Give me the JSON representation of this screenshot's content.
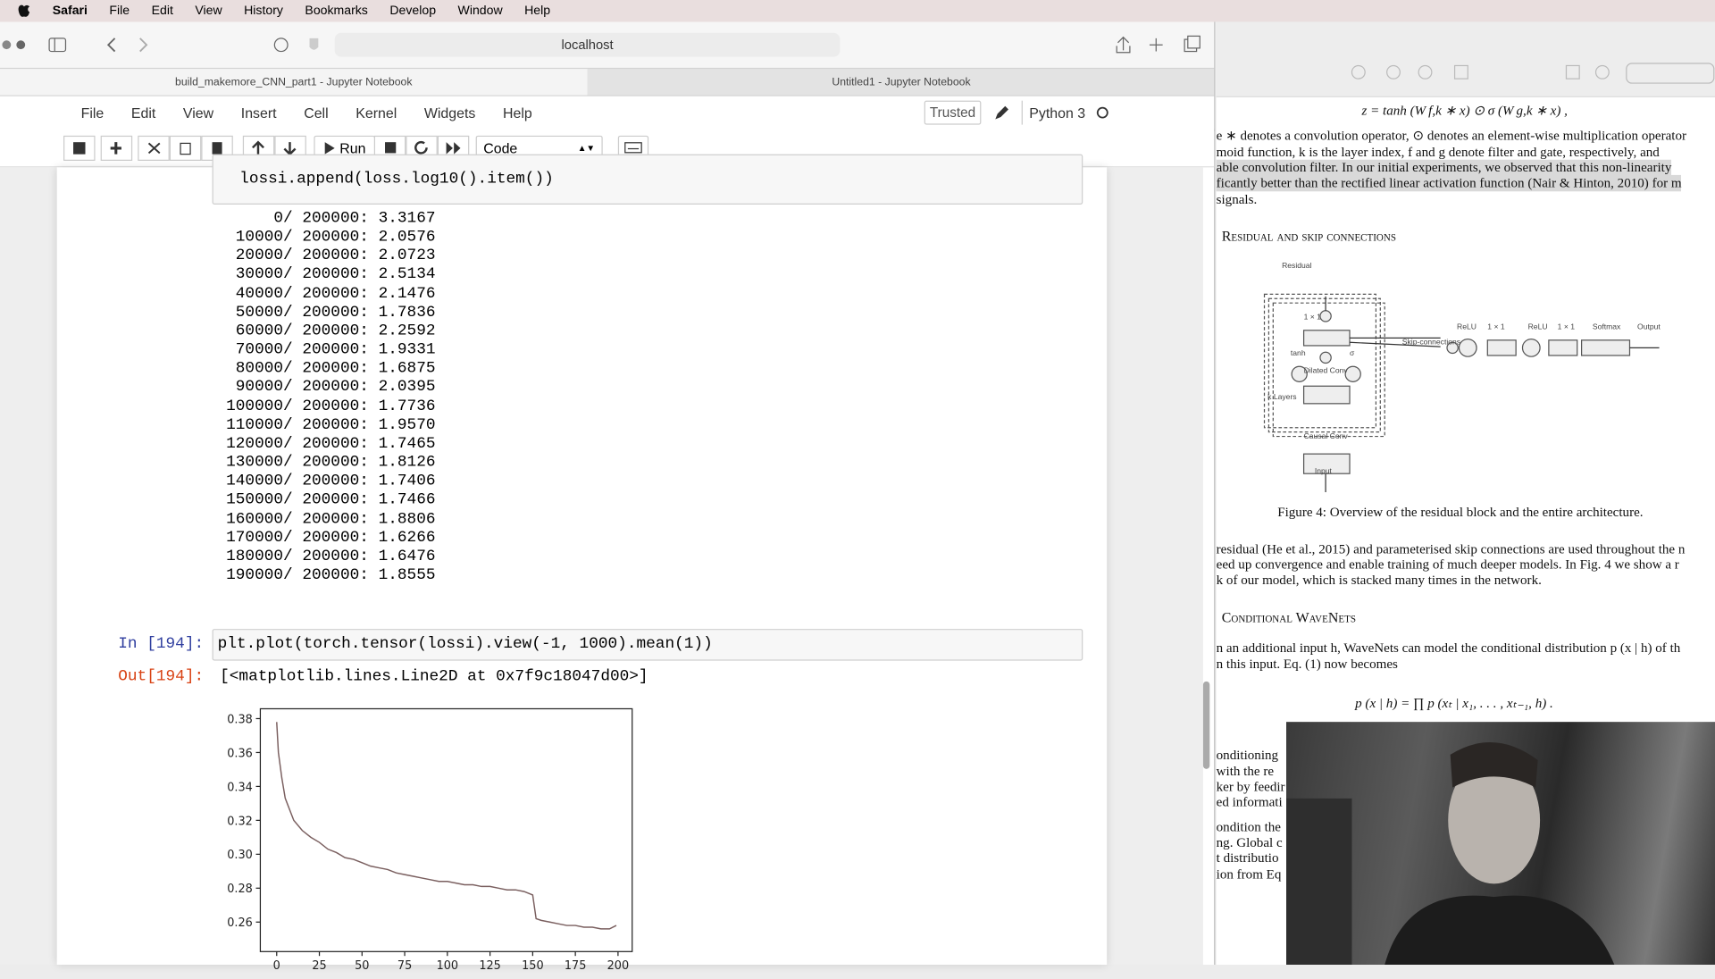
{
  "menubar": {
    "app": "Safari",
    "items": [
      "File",
      "Edit",
      "View",
      "History",
      "Bookmarks",
      "Develop",
      "Window",
      "Help"
    ]
  },
  "browser": {
    "url": "localhost",
    "tabs": [
      "build_makemore_CNN_part1 - Jupyter Notebook",
      "Untitled1 - Jupyter Notebook"
    ]
  },
  "jupyter": {
    "menu": [
      "File",
      "Edit",
      "View",
      "Insert",
      "Cell",
      "Kernel",
      "Widgets",
      "Help"
    ],
    "trusted": "Trusted",
    "kernel": "Python 3",
    "run": "Run",
    "cell_type": "Code"
  },
  "cells": {
    "prev_code": "lossi.append(loss.log10().item())",
    "prev_output": [
      "      0/ 200000: 3.3167",
      "  10000/ 200000: 2.0576",
      "  20000/ 200000: 2.0723",
      "  30000/ 200000: 2.5134",
      "  40000/ 200000: 2.1476",
      "  50000/ 200000: 1.7836",
      "  60000/ 200000: 2.2592",
      "  70000/ 200000: 1.9331",
      "  80000/ 200000: 1.6875",
      "  90000/ 200000: 2.0395",
      " 100000/ 200000: 1.7736",
      " 110000/ 200000: 1.9570",
      " 120000/ 200000: 1.7465",
      " 130000/ 200000: 1.8126",
      " 140000/ 200000: 1.7406",
      " 150000/ 200000: 1.7466",
      " 160000/ 200000: 1.8806",
      " 170000/ 200000: 1.6266",
      " 180000/ 200000: 1.6476",
      " 190000/ 200000: 1.8555"
    ],
    "in_prompt": "In [194]:",
    "code": "plt.plot(torch.tensor(lossi).view(-1, 1000).mean(1))",
    "out_prompt": "Out[194]:",
    "out_text": "[<matplotlib.lines.Line2D at 0x7f9c18047d00>]"
  },
  "chart_data": {
    "type": "line",
    "x": [
      0,
      1,
      3,
      5,
      10,
      15,
      20,
      25,
      30,
      35,
      40,
      45,
      50,
      55,
      60,
      65,
      70,
      75,
      80,
      85,
      90,
      95,
      100,
      105,
      110,
      115,
      120,
      125,
      130,
      135,
      140,
      145,
      150,
      152,
      155,
      160,
      165,
      170,
      175,
      180,
      185,
      190,
      195,
      199
    ],
    "values": [
      0.378,
      0.36,
      0.345,
      0.333,
      0.32,
      0.314,
      0.31,
      0.307,
      0.303,
      0.301,
      0.298,
      0.297,
      0.295,
      0.293,
      0.292,
      0.291,
      0.289,
      0.288,
      0.287,
      0.286,
      0.285,
      0.284,
      0.284,
      0.283,
      0.282,
      0.282,
      0.281,
      0.281,
      0.28,
      0.279,
      0.279,
      0.278,
      0.276,
      0.262,
      0.261,
      0.26,
      0.259,
      0.258,
      0.258,
      0.257,
      0.257,
      0.256,
      0.256,
      0.258
    ],
    "color": "#7a5f5f",
    "xlim": [
      -9.6,
      208.3
    ],
    "ylim": [
      0.2426,
      0.3858
    ],
    "xticks": [
      0,
      25,
      50,
      75,
      100,
      125,
      150,
      175,
      200
    ],
    "yticks": [
      0.26,
      0.28,
      {
        "value": 0.3,
        "label": "0.30"
      },
      0.32,
      0.34,
      0.36,
      0.38
    ]
  },
  "paper": {
    "lines": [
      "z = tanh (W f,k ∗ x) ⊙ σ (W g,k ∗ x) ,",
      "e ∗ denotes a convolution operator, ⊙ denotes an element-wise multiplication operator",
      "moid function, k is the layer index, f and g denote filter and gate, respectively, and",
      "able convolution filter. In our initial experiments, we observed that this non-linearity",
      "ficantly better than the rectified linear activation function (Nair & Hinton, 2010) for m",
      "signals.",
      "Residual and skip connections",
      "Figure 4: Overview of the residual block and the entire architecture.",
      "residual (He et al., 2015) and parameterised skip connections are used throughout the n",
      "eed up convergence and enable training of much deeper models. In Fig. 4 we show a r",
      "k of our model, which is stacked many times in the network.",
      "Conditional WaveNets",
      "n an additional input h, WaveNets can model the conditional distribution p (x | h) of th",
      "n this input. Eq. (1) now becomes",
      "p (x | h) = ∏ p (xₜ | x₁, . . . , xₜ₋₁, h) .",
      "onditioning",
      "with the re",
      "ker by feedir",
      "ed informati",
      "ondition the",
      "ng. Global c",
      "t distributio",
      "ion from Eq"
    ],
    "figure": [
      "Residual",
      "1 × 1",
      "tanh",
      "σ",
      "Dilated Conv",
      "k Layers",
      "Causal Conv",
      "Input",
      "Skip-connections",
      "ReLU",
      "1 × 1",
      "ReLU",
      "1 × 1",
      "Softmax",
      "Output"
    ]
  }
}
